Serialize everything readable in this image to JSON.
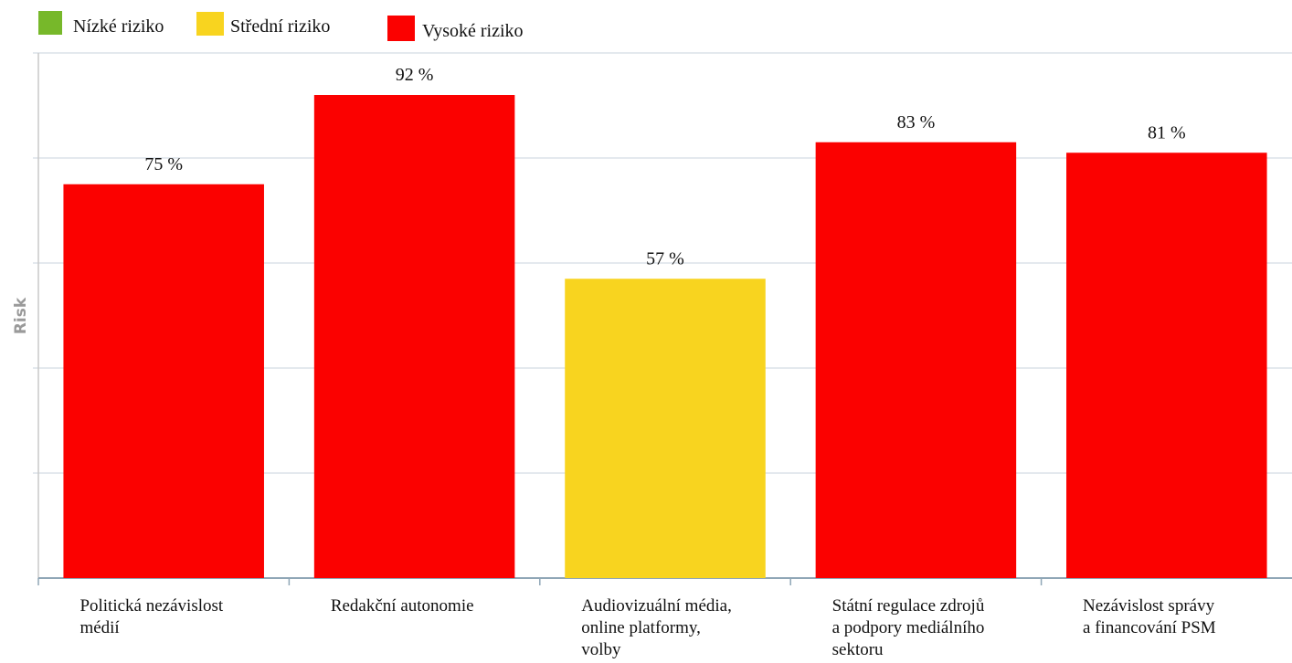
{
  "chart_data": {
    "type": "bar",
    "categories": [
      [
        "Politická nezávislost",
        "médií"
      ],
      [
        "Redakční autonomie"
      ],
      [
        "Audiovizuální média,",
        "online platformy,",
        "volby"
      ],
      [
        "Státní regulace zdrojů",
        "a podpory mediálního",
        "sektoru"
      ],
      [
        "Nezávislost správy",
        "a financování PSM"
      ]
    ],
    "values": [
      75,
      92,
      57,
      83,
      81
    ],
    "value_labels": [
      "75 %",
      "92 %",
      "57 %",
      "83 %",
      "81 %"
    ],
    "risk_level": [
      "high",
      "high",
      "medium",
      "high",
      "high"
    ],
    "ylabel": "Risk",
    "ylim": [
      0,
      100
    ],
    "legend": {
      "position": "top-left",
      "items": [
        {
          "key": "low",
          "label": "Nízké riziko",
          "color": "#77b82a"
        },
        {
          "key": "medium",
          "label": "Střední riziko",
          "color": "#f8d41f"
        },
        {
          "key": "high",
          "label": "Vysoké riziko",
          "color": "#fb0100"
        }
      ]
    },
    "grid": true
  }
}
